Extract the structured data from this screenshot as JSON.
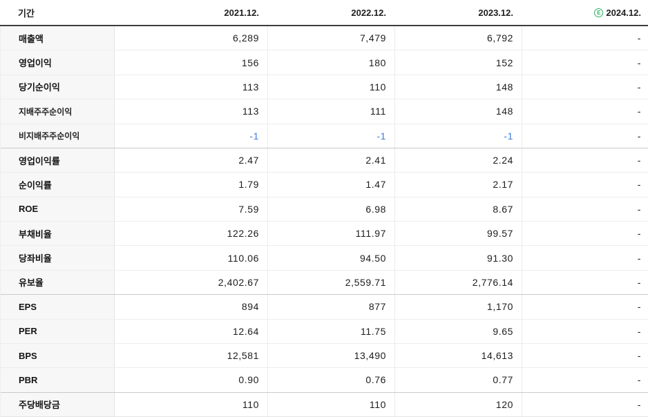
{
  "colors": {
    "negative_value": "#3c7be0",
    "estimate_badge": "#2eaf66",
    "header_rule": "#3d3d3d",
    "label_column_bg": "#f7f7f7",
    "row_divider": "#ededed",
    "group_divider": "#c9c9c9"
  },
  "chart_data": {
    "type": "table",
    "period_label": "기간",
    "columns": [
      "2021.12.",
      "2022.12.",
      "2023.12.",
      "2024.12."
    ],
    "estimate_columns": [
      3
    ],
    "estimate_badge": "E",
    "rows": [
      {
        "label": "매출액",
        "indent": false,
        "group_start": false,
        "values": [
          "6,289",
          "7,479",
          "6,792",
          "-"
        ]
      },
      {
        "label": "영업이익",
        "indent": false,
        "group_start": false,
        "values": [
          "156",
          "180",
          "152",
          "-"
        ]
      },
      {
        "label": "당기순이익",
        "indent": false,
        "group_start": false,
        "values": [
          "113",
          "110",
          "148",
          "-"
        ]
      },
      {
        "label": "지배주주순이익",
        "indent": true,
        "group_start": false,
        "values": [
          "113",
          "111",
          "148",
          "-"
        ]
      },
      {
        "label": "비지배주주순이익",
        "indent": true,
        "group_start": false,
        "values": [
          "-1",
          "-1",
          "-1",
          "-"
        ]
      },
      {
        "label": "영업이익률",
        "indent": false,
        "group_start": true,
        "values": [
          "2.47",
          "2.41",
          "2.24",
          "-"
        ]
      },
      {
        "label": "순이익률",
        "indent": false,
        "group_start": false,
        "values": [
          "1.79",
          "1.47",
          "2.17",
          "-"
        ]
      },
      {
        "label": "ROE",
        "indent": false,
        "group_start": false,
        "values": [
          "7.59",
          "6.98",
          "8.67",
          "-"
        ]
      },
      {
        "label": "부채비율",
        "indent": false,
        "group_start": false,
        "values": [
          "122.26",
          "111.97",
          "99.57",
          "-"
        ]
      },
      {
        "label": "당좌비율",
        "indent": false,
        "group_start": false,
        "values": [
          "110.06",
          "94.50",
          "91.30",
          "-"
        ]
      },
      {
        "label": "유보율",
        "indent": false,
        "group_start": false,
        "values": [
          "2,402.67",
          "2,559.71",
          "2,776.14",
          "-"
        ]
      },
      {
        "label": "EPS",
        "indent": false,
        "group_start": true,
        "values": [
          "894",
          "877",
          "1,170",
          "-"
        ]
      },
      {
        "label": "PER",
        "indent": false,
        "group_start": false,
        "values": [
          "12.64",
          "11.75",
          "9.65",
          "-"
        ]
      },
      {
        "label": "BPS",
        "indent": false,
        "group_start": false,
        "values": [
          "12,581",
          "13,490",
          "14,613",
          "-"
        ]
      },
      {
        "label": "PBR",
        "indent": false,
        "group_start": false,
        "values": [
          "0.90",
          "0.76",
          "0.77",
          "-"
        ]
      },
      {
        "label": "주당배당금",
        "indent": false,
        "group_start": true,
        "values": [
          "110",
          "110",
          "120",
          "-"
        ]
      }
    ]
  }
}
